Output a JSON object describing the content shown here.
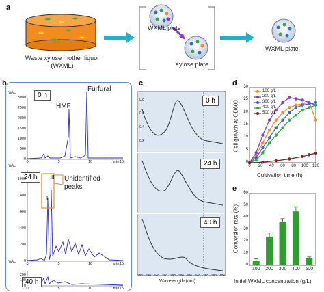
{
  "panel_a": {
    "letter": "a",
    "waste_label": "Waste xylose mother liquor (WXML)",
    "wxml_plate_label": "WXML plate",
    "xylose_plate_label": "Xylose plate",
    "final_plate_label": "WXML plate"
  },
  "panel_b": {
    "letter": "b",
    "unit": "mAU",
    "x_unit": "min",
    "traces": [
      {
        "label": "0 h",
        "yticks": [
          "3000",
          "2500",
          "2000",
          "1500",
          "1000",
          "500",
          "0"
        ],
        "peak_labels": [
          "HMF",
          "Furfural"
        ]
      },
      {
        "label": "24 h",
        "yticks": [
          "1000",
          "800",
          "600",
          "400",
          "200",
          "0"
        ],
        "peak_labels": [
          "I",
          "II"
        ],
        "callout": "Unidentified peaks"
      },
      {
        "label": "40 h",
        "yticks": [
          "200",
          "100",
          "0"
        ]
      }
    ],
    "xticks": [
      "0",
      "5",
      "10",
      "15"
    ]
  },
  "panel_c": {
    "letter": "c",
    "labels": [
      "0 h",
      "24 h",
      "40 h"
    ],
    "yticks": [
      "0.8",
      "0.6",
      "0.4",
      "0.2"
    ],
    "xticks": [
      "200",
      "220",
      "240",
      "260",
      "280",
      "300",
      "320",
      "340",
      "360",
      "380",
      "400"
    ],
    "xlabel": "Wavelength (nm)"
  },
  "panel_d": {
    "letter": "d",
    "chart_data": {
      "type": "line",
      "xlabel": "Cultivation time (h)",
      "ylabel": "Cell growth at OD600",
      "xlim": [
        0,
        120
      ],
      "ylim": [
        0,
        30
      ],
      "xticks": [
        "0",
        "20",
        "40",
        "60",
        "80",
        "100",
        "120"
      ],
      "yticks": [
        "0",
        "5",
        "10",
        "15",
        "20",
        "25",
        "30"
      ],
      "series": [
        {
          "name": "100 g/L",
          "color": "#f08c2a",
          "x": [
            0,
            12,
            24,
            36,
            48,
            60,
            72,
            84,
            96,
            108,
            120
          ],
          "y": [
            0,
            3,
            8,
            13,
            17,
            20,
            22,
            23,
            23.5,
            24,
            17
          ]
        },
        {
          "name": "200 g/L",
          "color": "#8a3cc8",
          "x": [
            0,
            12,
            24,
            36,
            48,
            60,
            72,
            84,
            96,
            108,
            120
          ],
          "y": [
            0,
            4,
            11,
            17,
            21,
            24,
            26,
            25.5,
            25,
            24,
            23
          ]
        },
        {
          "name": "300 g/L",
          "color": "#2a6fd6",
          "x": [
            0,
            12,
            24,
            36,
            48,
            60,
            72,
            84,
            96,
            108,
            120
          ],
          "y": [
            0,
            2,
            6,
            10,
            14,
            17,
            20,
            22,
            23,
            23.5,
            24
          ]
        },
        {
          "name": "400 g/L",
          "color": "#2fae3e",
          "x": [
            0,
            12,
            24,
            36,
            48,
            60,
            72,
            84,
            96,
            108,
            120
          ],
          "y": [
            0,
            1,
            4,
            8,
            11,
            14,
            17,
            19,
            21,
            22,
            23
          ]
        },
        {
          "name": "500 g/L",
          "color": "#8b1f1f",
          "x": [
            0,
            24,
            48,
            72,
            96,
            108,
            120
          ],
          "y": [
            0,
            0.2,
            0.8,
            1.5,
            2.5,
            3.2,
            3.8
          ]
        }
      ]
    }
  },
  "panel_e": {
    "letter": "e",
    "chart_data": {
      "type": "bar",
      "xlabel": "Initial WXML concentration (g/L)",
      "ylabel": "Conversion rate (%)",
      "categories": [
        "100",
        "200",
        "300",
        "400",
        "500"
      ],
      "values": [
        4,
        24,
        36,
        45,
        6
      ],
      "errors": [
        1.5,
        3,
        3,
        4,
        1
      ],
      "ylim": [
        0,
        60
      ],
      "yticks": [
        "0",
        "10",
        "20",
        "30",
        "40",
        "50",
        "60"
      ],
      "color": "#2f9e2f"
    }
  }
}
